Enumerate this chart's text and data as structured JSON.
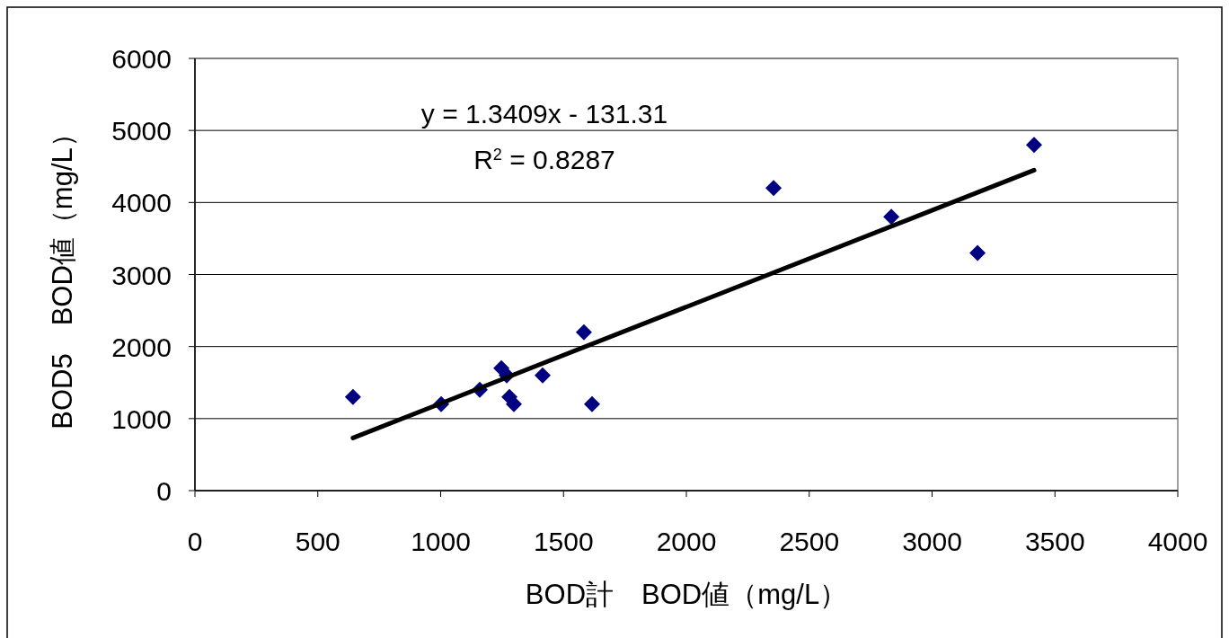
{
  "chart_data": {
    "type": "scatter",
    "xlabel": "BOD計　BOD値（mg/L）",
    "ylabel": "BOD5　BOD値（mg/L）",
    "annotations": [
      "y = 1.3409x - 131.31",
      "R$^{2}$ = 0.8287"
    ],
    "xlim": [
      0,
      4000
    ],
    "xticks": [
      0,
      500,
      1000,
      1500,
      2000,
      2500,
      3000,
      3500,
      4000
    ],
    "ylim": [
      0,
      6000
    ],
    "yticks": [
      0,
      1000,
      2000,
      3000,
      4000,
      5000,
      6000
    ],
    "grid": "y",
    "marker": "diamond",
    "series": [
      {
        "color": "#000080",
        "x": [
          643,
          1002,
          1159,
          1247,
          1269,
          1280,
          1298,
          1415,
          1583,
          1616,
          2355,
          2834,
          3185,
          3415
        ],
        "values": [
          1300,
          1200,
          1400,
          1700,
          1600,
          1300,
          1200,
          1600,
          2200,
          1200,
          4200,
          3800,
          3300,
          4800
        ]
      },
      {
        "type": "line",
        "color": "#000000",
        "marker": "none",
        "x": [
          643,
          3415
        ],
        "values": [
          731,
          4448
        ]
      }
    ]
  }
}
